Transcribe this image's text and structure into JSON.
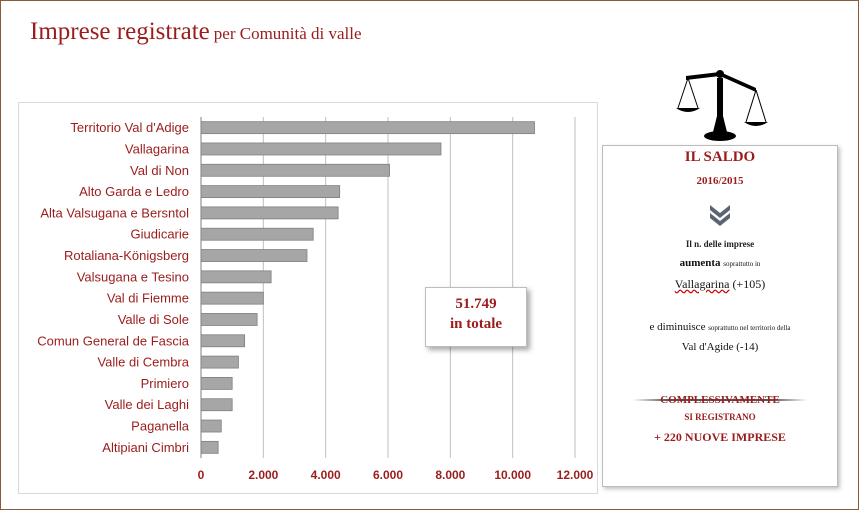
{
  "title": {
    "main": "Imprese registrate",
    "sub": "per Comunità di valle"
  },
  "colors": {
    "accent": "#9b1c1c",
    "bar_fill": "#a6a6a6",
    "bar_stroke": "#7f7f7f",
    "grid": "#bfbfbf"
  },
  "chart_data": {
    "type": "bar",
    "orientation": "horizontal",
    "categories": [
      "Territorio Val d'Adige",
      "Vallagarina",
      "Val di Non",
      "Alto Garda e Ledro",
      "Alta Valsugana e Bersntol",
      "Giudicarie",
      "Rotaliana-Königsberg",
      "Valsugana e Tesino",
      "Val di Fiemme",
      "Valle di Sole",
      "Comun General de Fascia",
      "Valle di Cembra",
      "Primiero",
      "Valle dei Laghi",
      "Paganella",
      "Altipiani Cimbri"
    ],
    "values": [
      10700,
      7700,
      6050,
      4450,
      4400,
      3600,
      3400,
      2250,
      2000,
      1800,
      1400,
      1200,
      1000,
      1000,
      650,
      550
    ],
    "xlim": [
      0,
      12000
    ],
    "xticks": [
      "0",
      "2.000",
      "4.000",
      "6.000",
      "8.000",
      "10.000",
      "12.000"
    ],
    "grid": true,
    "legend": "none"
  },
  "total": {
    "value": "51.749",
    "label": "in totale"
  },
  "saldo": {
    "title": "IL SALDO",
    "period": "2016/2015",
    "line1_small": "Il n. delle imprese",
    "line2_bold": "aumenta",
    "line2_small": "soprattutto in",
    "line3_place": "Vallagarina",
    "line3_delta": "(+105)",
    "line4_main": "e diminuisce",
    "line4_small": "soprattutto nel territorio della",
    "line5": "Val d'Agide (-14)",
    "line6": "COMPLESSIVAMENTE",
    "line7": "SI REGISTRANO",
    "line8": "+ 220 NUOVE IMPRESE"
  },
  "icons": {
    "scale": "balance-scale-icon",
    "chevron": "double-chevron-down-icon"
  }
}
